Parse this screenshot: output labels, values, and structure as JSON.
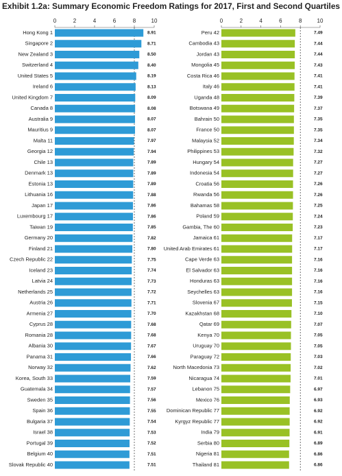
{
  "title": "Exhibit 1.2a: Summary Economic Freedom Ratings for 2017, First and Second Quartiles",
  "chart_data": [
    {
      "type": "barh",
      "color": "#2e9bd6",
      "xlim": [
        0,
        10
      ],
      "xticks": [
        0,
        2,
        4,
        6,
        8,
        10
      ],
      "reference_line": 8,
      "categories": [
        "Hong Kong 1",
        "Singapore 2",
        "New Zealand 3",
        "Switzerland 4",
        "United States 5",
        "Ireland 6",
        "United Kingdom 7",
        "Canada 8",
        "Australia 9",
        "Mauritius 9",
        "Malta 11",
        "Georgia 12",
        "Chile 13",
        "Denmark 13",
        "Estonia 13",
        "Lithuania 16",
        "Japan 17",
        "Luxembourg 17",
        "Taiwan 19",
        "Germany 20",
        "Finland 21",
        "Czech Republic 22",
        "Iceland 23",
        "Latvia 24",
        "Netherlands 25",
        "Austria 26",
        "Armenia 27",
        "Cyprus 28",
        "Romania 28",
        "Albania 30",
        "Panama 31",
        "Norway 32",
        "Korea, South 33",
        "Guatemala 34",
        "Sweden 35",
        "Spain 36",
        "Bulgaria 37",
        "Israel 38",
        "Portugal 39",
        "Belgium 40",
        "Slovak Republic 40"
      ],
      "values": [
        8.91,
        8.71,
        8.5,
        8.4,
        8.19,
        8.13,
        8.09,
        8.08,
        8.07,
        8.07,
        7.97,
        7.94,
        7.89,
        7.89,
        7.89,
        7.88,
        7.86,
        7.86,
        7.85,
        7.82,
        7.8,
        7.75,
        7.74,
        7.73,
        7.72,
        7.71,
        7.7,
        7.68,
        7.68,
        7.67,
        7.66,
        7.62,
        7.59,
        7.57,
        7.56,
        7.55,
        7.54,
        7.53,
        7.52,
        7.51,
        7.51
      ],
      "value_labels": [
        "8.91",
        "8.71",
        "8.50",
        "8.40",
        "8.19",
        "8.13",
        "8.09",
        "8.08",
        "8.07",
        "8.07",
        "7.97",
        "7.94",
        "7.89",
        "7.89",
        "7.89",
        "7.88",
        "7.86",
        "7.86",
        "7.85",
        "7.82",
        "7.80",
        "7.75",
        "7.74",
        "7.73",
        "7.72",
        "7.71",
        "7.70",
        "7.68",
        "7.68",
        "7.67",
        "7.66",
        "7.62",
        "7.59",
        "7.57",
        "7.56",
        "7.55",
        "7.54",
        "7.53",
        "7.52",
        "7.51",
        "7.51"
      ]
    },
    {
      "type": "barh",
      "color": "#99c125",
      "xlim": [
        0,
        10
      ],
      "xticks": [
        0,
        2,
        4,
        6,
        8,
        10
      ],
      "reference_line": 8,
      "categories": [
        "Peru 42",
        "Cambodia 43",
        "Jordan 43",
        "Mongolia 45",
        "Costa Rica 46",
        "Italy 46",
        "Uganda 48",
        "Botswana 49",
        "Bahrain 50",
        "France 50",
        "Malaysia 52",
        "Philippines 53",
        "Hungary 54",
        "Indonesia 54",
        "Croatia 56",
        "Rwanda 56",
        "Bahamas 58",
        "Poland 59",
        "Gambia, The 60",
        "Jamaica 61",
        "United Arab Emirates 61",
        "Cape Verde 63",
        "El Salvador 63",
        "Honduras 63",
        "Seychelles 63",
        "Slovenia 67",
        "Kazakhstan 68",
        "Qatar 69",
        "Kenya 70",
        "Uruguay 70",
        "Paraguay 72",
        "North Macedonia 73",
        "Nicaragua 74",
        "Lebanon 75",
        "Mexico 76",
        "Dominican Republic 77",
        "Kyrgyz Republic 77",
        "India 79",
        "Serbia 80",
        "Nigeria 81",
        "Thailand 81"
      ],
      "values": [
        7.49,
        7.44,
        7.44,
        7.43,
        7.41,
        7.41,
        7.39,
        7.37,
        7.35,
        7.35,
        7.34,
        7.32,
        7.27,
        7.27,
        7.26,
        7.26,
        7.25,
        7.24,
        7.23,
        7.17,
        7.17,
        7.16,
        7.16,
        7.16,
        7.16,
        7.15,
        7.1,
        7.07,
        7.05,
        7.05,
        7.03,
        7.02,
        7.01,
        6.97,
        6.93,
        6.92,
        6.92,
        6.91,
        6.89,
        6.86,
        6.86
      ],
      "value_labels": [
        "7.49",
        "7.44",
        "7.44",
        "7.43",
        "7.41",
        "7.41",
        "7.39",
        "7.37",
        "7.35",
        "7.35",
        "7.34",
        "7.32",
        "7.27",
        "7.27",
        "7.26",
        "7.26",
        "7.25",
        "7.24",
        "7.23",
        "7.17",
        "7.17",
        "7.16",
        "7.16",
        "7.16",
        "7.16",
        "7.15",
        "7.10",
        "7.07",
        "7.05",
        "7.05",
        "7.03",
        "7.02",
        "7.01",
        "6.97",
        "6.93",
        "6.92",
        "6.92",
        "6.91",
        "6.89",
        "6.86",
        "6.86"
      ]
    }
  ]
}
